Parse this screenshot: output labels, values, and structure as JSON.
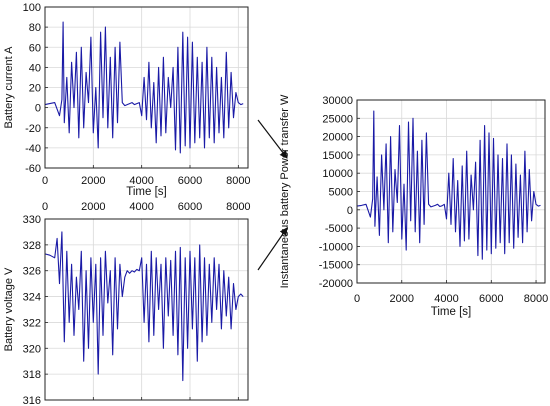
{
  "chart_data": [
    {
      "id": "current",
      "type": "line",
      "xlabel": "Time [s]",
      "ylabel": "Battery current A",
      "xlim": [
        0,
        8400
      ],
      "ylim": [
        -60,
        100
      ],
      "xticks": [
        0,
        2000,
        4000,
        6000,
        8000
      ],
      "yticks": [
        -60,
        -40,
        -20,
        0,
        20,
        40,
        60,
        80,
        100
      ],
      "grid": true,
      "color": "#1a1aa6",
      "series": [
        {
          "x": [
            0,
            200,
            400,
            600,
            700,
            750,
            800,
            900,
            1000,
            1100,
            1200,
            1300,
            1400,
            1500,
            1600,
            1700,
            1800,
            1900,
            2000,
            2100,
            2200,
            2300,
            2400,
            2500,
            2600,
            2700,
            2800,
            2900,
            3000,
            3100,
            3200,
            3300,
            3400,
            3500,
            3600,
            3700,
            3800,
            3900,
            4000,
            4100,
            4200,
            4300,
            4400,
            4500,
            4600,
            4700,
            4800,
            4900,
            5000,
            5100,
            5200,
            5300,
            5400,
            5500,
            5600,
            5700,
            5800,
            5900,
            6000,
            6100,
            6200,
            6300,
            6400,
            6500,
            6600,
            6700,
            6800,
            6900,
            7000,
            7100,
            7200,
            7300,
            7400,
            7500,
            7600,
            7700,
            7800,
            7900,
            8000,
            8100,
            8200
          ],
          "y": [
            3,
            4,
            5,
            -8,
            8,
            85,
            -15,
            30,
            -25,
            45,
            0,
            55,
            -30,
            60,
            -20,
            35,
            5,
            70,
            -25,
            20,
            -40,
            75,
            -10,
            80,
            -20,
            50,
            -30,
            60,
            -15,
            65,
            5,
            2,
            3,
            4,
            5,
            3,
            4,
            5,
            -8,
            30,
            -12,
            45,
            -20,
            25,
            -35,
            40,
            -28,
            50,
            -25,
            30,
            0,
            40,
            -42,
            60,
            -45,
            75,
            -38,
            70,
            -40,
            65,
            -35,
            50,
            -30,
            45,
            -40,
            60,
            -30,
            50,
            -35,
            40,
            -25,
            30,
            -30,
            55,
            -20,
            35,
            -10,
            15,
            5,
            3,
            4
          ]
        }
      ]
    },
    {
      "id": "voltage",
      "type": "line",
      "ylabel": "Battery voltage V",
      "xlim": [
        0,
        8400
      ],
      "ylim": [
        316,
        330
      ],
      "xticks": [
        0,
        2000,
        4000,
        6000,
        8000
      ],
      "yticks": [
        316,
        318,
        320,
        322,
        324,
        326,
        328,
        330
      ],
      "grid": true,
      "color": "#1a1aa6",
      "series": [
        {
          "x": [
            0,
            200,
            400,
            500,
            600,
            700,
            800,
            900,
            1000,
            1100,
            1200,
            1300,
            1400,
            1500,
            1600,
            1700,
            1800,
            1900,
            2000,
            2100,
            2200,
            2300,
            2400,
            2500,
            2600,
            2700,
            2800,
            2900,
            3000,
            3100,
            3200,
            3300,
            3400,
            3500,
            3600,
            3700,
            3800,
            3900,
            4000,
            4100,
            4200,
            4300,
            4400,
            4500,
            4600,
            4700,
            4800,
            4900,
            5000,
            5100,
            5200,
            5300,
            5400,
            5500,
            5600,
            5700,
            5800,
            5900,
            6000,
            6100,
            6200,
            6300,
            6400,
            6500,
            6600,
            6700,
            6800,
            6900,
            7000,
            7100,
            7200,
            7300,
            7400,
            7500,
            7600,
            7700,
            7800,
            7900,
            8000,
            8100,
            8200
          ],
          "y": [
            327.3,
            327.2,
            327.0,
            328.5,
            325.0,
            329.0,
            320.5,
            327.5,
            322.0,
            326.5,
            321.0,
            325.5,
            323.0,
            327.5,
            319.0,
            326.0,
            320.0,
            327.0,
            322.0,
            326.5,
            318.0,
            327.0,
            321.0,
            327.5,
            323.5,
            326.0,
            319.5,
            327.0,
            321.5,
            326.5,
            324.0,
            325.5,
            326.0,
            325.8,
            326.0,
            325.9,
            326.1,
            326.0,
            327.0,
            322.0,
            326.5,
            320.5,
            327.5,
            321.0,
            327.0,
            323.0,
            326.5,
            320.0,
            327.0,
            322.5,
            326.8,
            321.0,
            327.5,
            319.5,
            327.8,
            317.5,
            327.0,
            320.0,
            327.5,
            321.5,
            327.0,
            319.0,
            328.0,
            320.5,
            327.0,
            321.0,
            326.5,
            322.0,
            327.0,
            323.0,
            326.5,
            321.5,
            326.0,
            322.5,
            325.5,
            321.5,
            325.0,
            323.0,
            324.0,
            324.2,
            324.0
          ]
        }
      ]
    },
    {
      "id": "power",
      "type": "line",
      "xlabel": "Time [s]",
      "ylabel": "Instantaneous battery Power transfer W",
      "xlim": [
        0,
        8400
      ],
      "ylim": [
        -20000,
        30000
      ],
      "xticks": [
        0,
        2000,
        4000,
        6000,
        8000
      ],
      "yticks": [
        -20000,
        -15000,
        -10000,
        -5000,
        0,
        5000,
        10000,
        15000,
        20000,
        25000,
        30000
      ],
      "grid": true,
      "color": "#1a1aa6",
      "series": [
        {
          "x": [
            0,
            200,
            400,
            600,
            700,
            750,
            800,
            900,
            1000,
            1100,
            1200,
            1300,
            1400,
            1500,
            1600,
            1700,
            1800,
            1900,
            2000,
            2100,
            2200,
            2300,
            2400,
            2500,
            2600,
            2700,
            2800,
            2900,
            3000,
            3100,
            3200,
            3300,
            3400,
            3500,
            3600,
            3700,
            3800,
            3900,
            4000,
            4100,
            4200,
            4300,
            4400,
            4500,
            4600,
            4700,
            4800,
            4900,
            5000,
            5100,
            5200,
            5300,
            5400,
            5500,
            5600,
            5700,
            5800,
            5900,
            6000,
            6100,
            6200,
            6300,
            6400,
            6500,
            6600,
            6700,
            6800,
            6900,
            7000,
            7100,
            7200,
            7300,
            7400,
            7500,
            7600,
            7700,
            7800,
            7900,
            8000,
            8100,
            8200
          ],
          "y": [
            1000,
            1200,
            1500,
            -2000,
            3000,
            27000,
            -4500,
            9000,
            -7000,
            15000,
            0,
            18000,
            -9000,
            20000,
            -6000,
            11000,
            2000,
            23000,
            -8000,
            7000,
            -11000,
            24000,
            -3000,
            25000,
            -6000,
            16000,
            -9000,
            19000,
            -4000,
            21000,
            1500,
            800,
            1000,
            1200,
            1500,
            900,
            1100,
            1500,
            -2500,
            10000,
            -4000,
            14000,
            -6000,
            8000,
            -10000,
            12000,
            -8500,
            16000,
            -8000,
            9500,
            0,
            13000,
            -12500,
            19000,
            -13500,
            23000,
            -11000,
            21000,
            -12000,
            19500,
            -10500,
            15000,
            -9000,
            14000,
            -12000,
            18000,
            -9000,
            15000,
            -10500,
            12500,
            -7500,
            9500,
            -9000,
            16000,
            -6000,
            11000,
            -3000,
            5000,
            1500,
            1000,
            1200
          ]
        }
      ]
    }
  ]
}
